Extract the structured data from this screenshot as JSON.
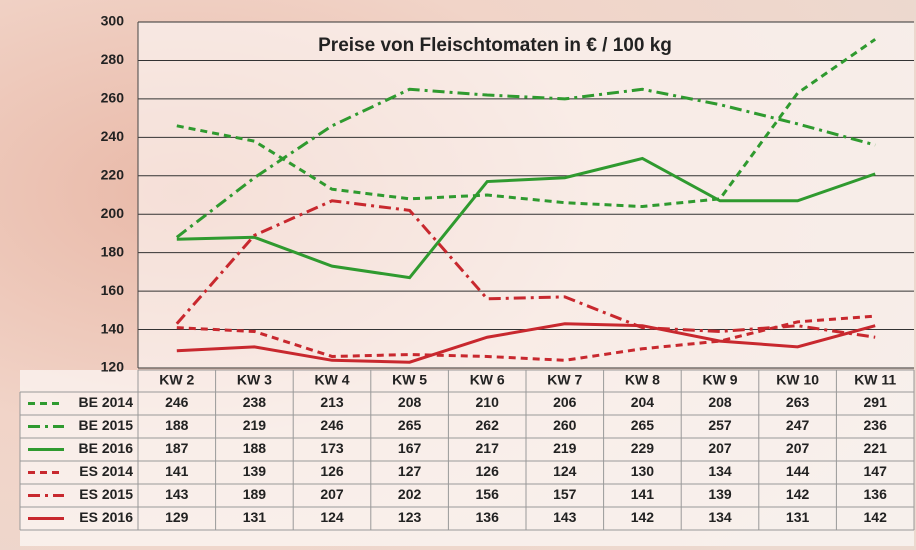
{
  "chart_data": {
    "type": "line",
    "title": "Preise von Fleischtomaten in € / 100 kg",
    "categories": [
      "KW 2",
      "KW 3",
      "KW 4",
      "KW 5",
      "KW 6",
      "KW 7",
      "KW 8",
      "KW 9",
      "KW 10",
      "KW 11"
    ],
    "series": [
      {
        "name": "BE 2014",
        "color": "#2f9a2f",
        "line_style": "dashed",
        "values": [
          246,
          238,
          213,
          208,
          210,
          206,
          204,
          208,
          263,
          291
        ]
      },
      {
        "name": "BE 2015",
        "color": "#2f9a2f",
        "line_style": "dashdot",
        "values": [
          188,
          219,
          246,
          265,
          262,
          260,
          265,
          257,
          247,
          236
        ]
      },
      {
        "name": "BE 2016",
        "color": "#2f9a2f",
        "line_style": "solid",
        "values": [
          187,
          188,
          173,
          167,
          217,
          219,
          229,
          207,
          207,
          221
        ]
      },
      {
        "name": "ES 2014",
        "color": "#c8282e",
        "line_style": "dashed",
        "values": [
          141,
          139,
          126,
          127,
          126,
          124,
          130,
          134,
          144,
          147
        ]
      },
      {
        "name": "ES 2015",
        "color": "#c8282e",
        "line_style": "dashdot",
        "values": [
          143,
          189,
          207,
          202,
          156,
          157,
          141,
          139,
          142,
          136
        ]
      },
      {
        "name": "ES 2016",
        "color": "#c8282e",
        "line_style": "solid",
        "values": [
          129,
          131,
          124,
          123,
          136,
          143,
          142,
          134,
          131,
          142
        ]
      }
    ],
    "ylim": [
      120,
      300
    ],
    "yticks": [
      120,
      140,
      160,
      180,
      200,
      220,
      240,
      260,
      280,
      300
    ],
    "grid": true,
    "data_table": true
  }
}
